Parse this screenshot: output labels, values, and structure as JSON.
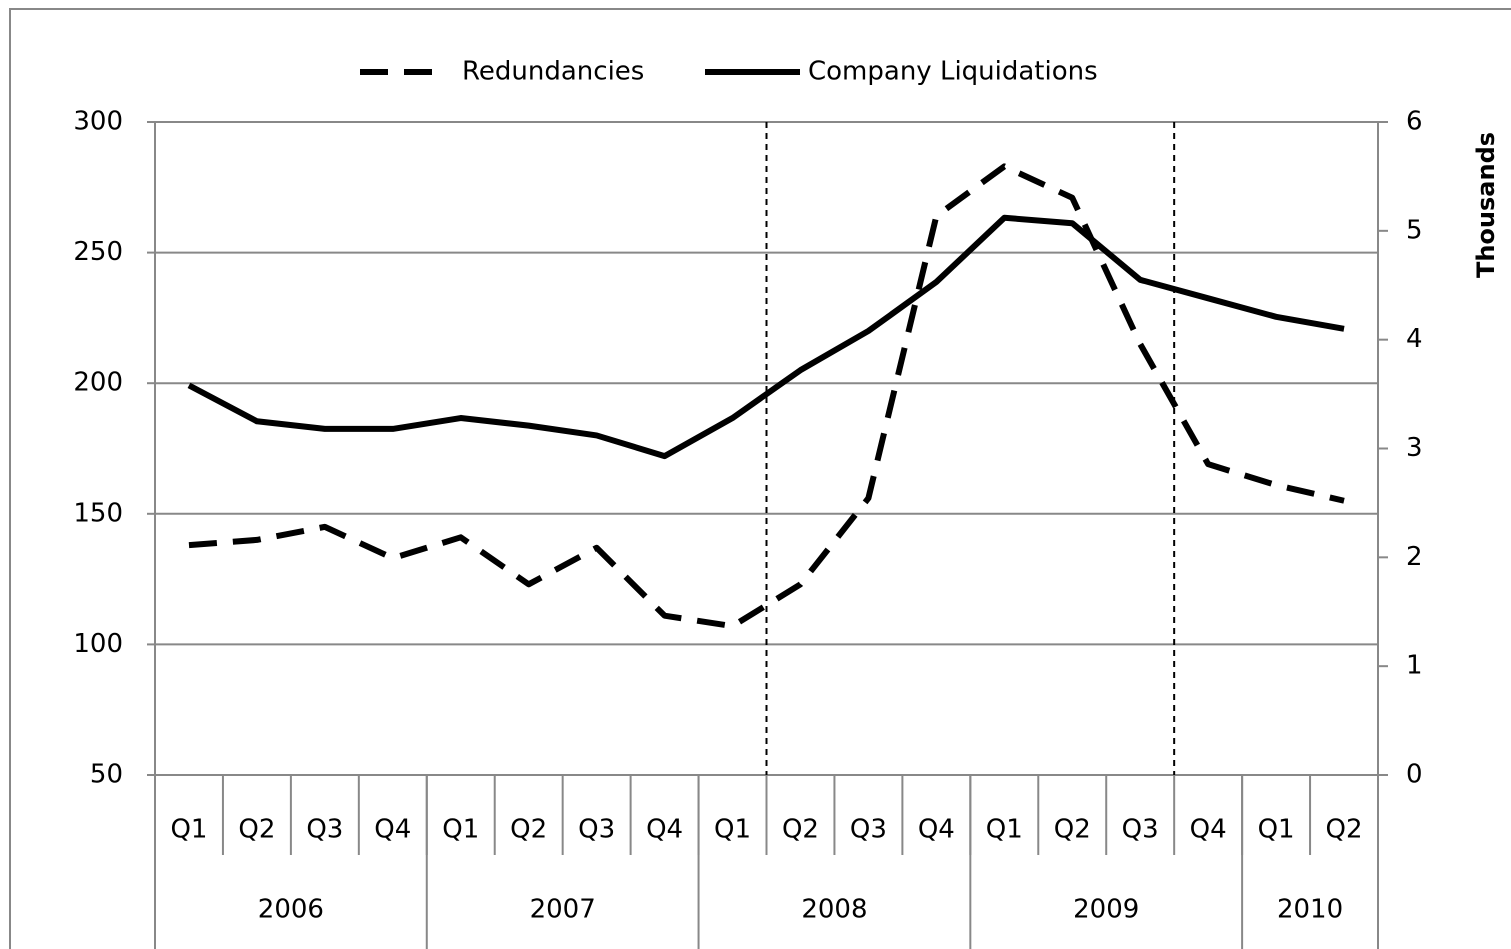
{
  "chart_data": {
    "type": "line",
    "category_groups": [
      {
        "label": "2006",
        "categories": [
          "Q1",
          "Q2",
          "Q3",
          "Q4"
        ]
      },
      {
        "label": "2007",
        "categories": [
          "Q1",
          "Q2",
          "Q3",
          "Q4"
        ]
      },
      {
        "label": "2008",
        "categories": [
          "Q1",
          "Q2",
          "Q3",
          "Q4"
        ]
      },
      {
        "label": "2009",
        "categories": [
          "Q1",
          "Q2",
          "Q3",
          "Q4"
        ]
      },
      {
        "label": "2010",
        "categories": [
          "Q1",
          "Q2"
        ]
      }
    ],
    "series": [
      {
        "name": "Redundancies",
        "color": "#000000",
        "line_style": "dashed",
        "values": [
          138,
          140,
          145,
          133,
          141,
          123,
          137,
          111,
          107,
          123,
          156,
          264,
          283,
          271,
          215,
          169,
          161,
          155
        ]
      },
      {
        "name": "Company Liquidations",
        "color": "#000000",
        "line_style": "solid",
        "axis": "y2",
        "values": [
          3.58,
          3.25,
          3.18,
          3.18,
          3.28,
          3.21,
          3.12,
          2.93,
          3.28,
          3.72,
          4.08,
          4.53,
          5.12,
          5.07,
          4.55,
          4.38,
          4.21,
          4.1
        ]
      }
    ],
    "ylim": [
      50,
      300
    ],
    "yticks": [
      50,
      100,
      150,
      200,
      250,
      300
    ],
    "y2lim": [
      0,
      6
    ],
    "y2ticks": [
      0,
      1,
      2,
      3,
      4,
      5,
      6
    ],
    "y2label": "Thousands",
    "grid": true,
    "legend": "top"
  }
}
